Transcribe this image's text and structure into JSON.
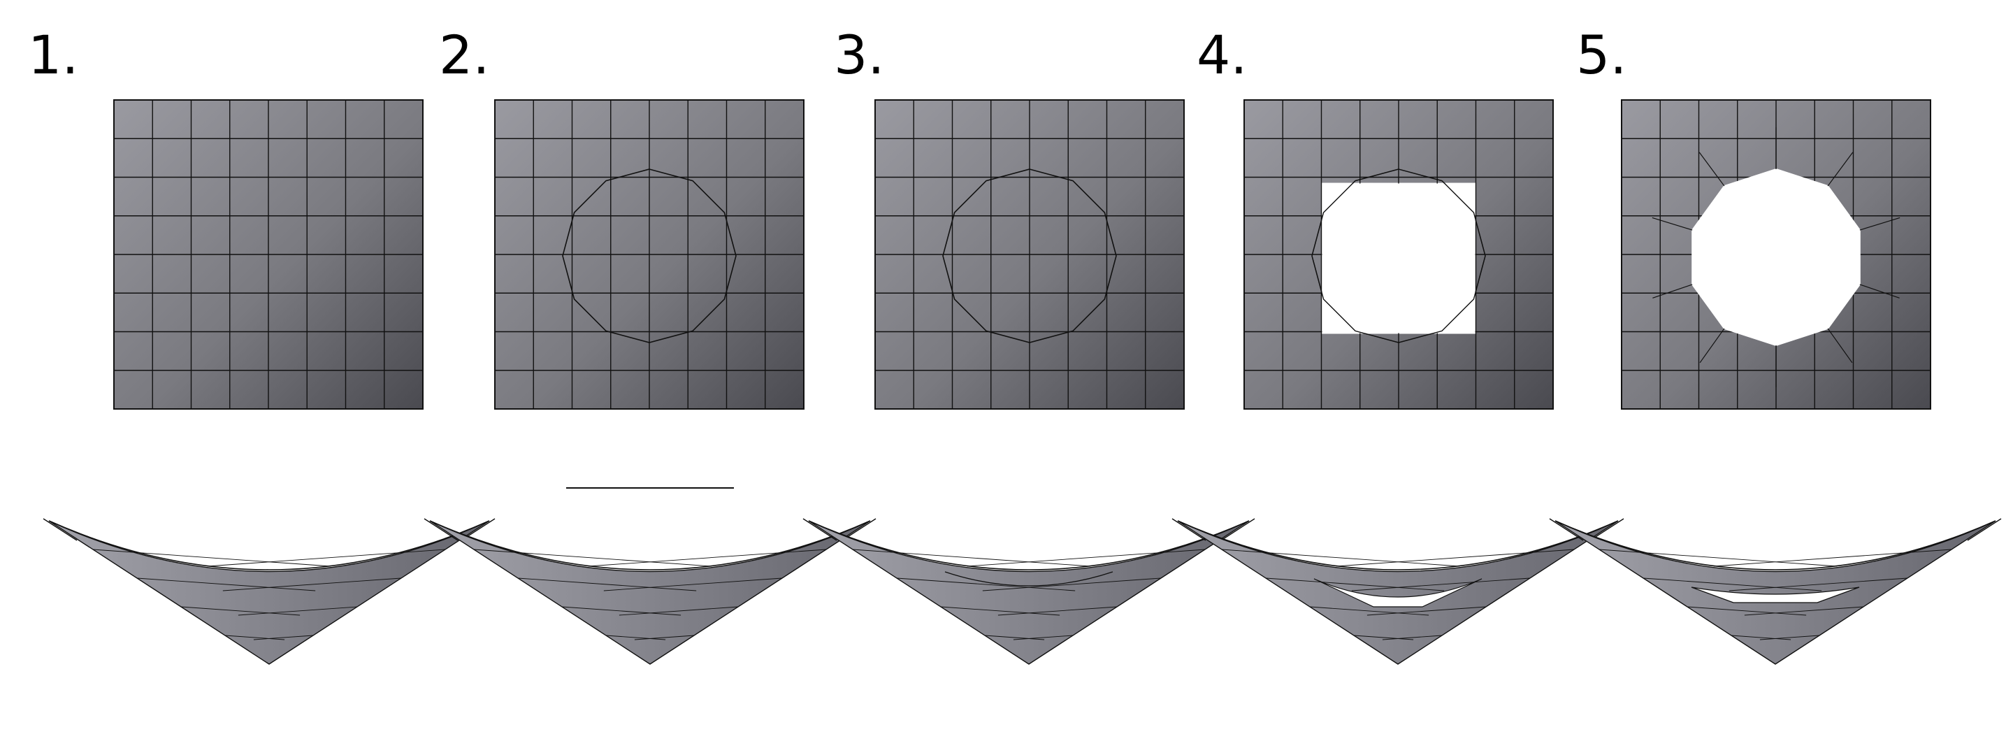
{
  "steps": [
    {
      "label": "1.",
      "panel": "grid"
    },
    {
      "label": "2.",
      "panel": "grid-circle"
    },
    {
      "label": "3.",
      "panel": "grid-circle"
    },
    {
      "label": "4.",
      "panel": "grid-square-hole"
    },
    {
      "label": "5.",
      "panel": "grid-polygon-hole"
    }
  ],
  "grid": {
    "rows": 8,
    "cols": 8
  },
  "circle": {
    "sides": 12
  },
  "colors": {
    "surface_light": "#9a9aa1",
    "surface_dark": "#4a4a50",
    "line": "#111111",
    "background": "#ffffff"
  }
}
